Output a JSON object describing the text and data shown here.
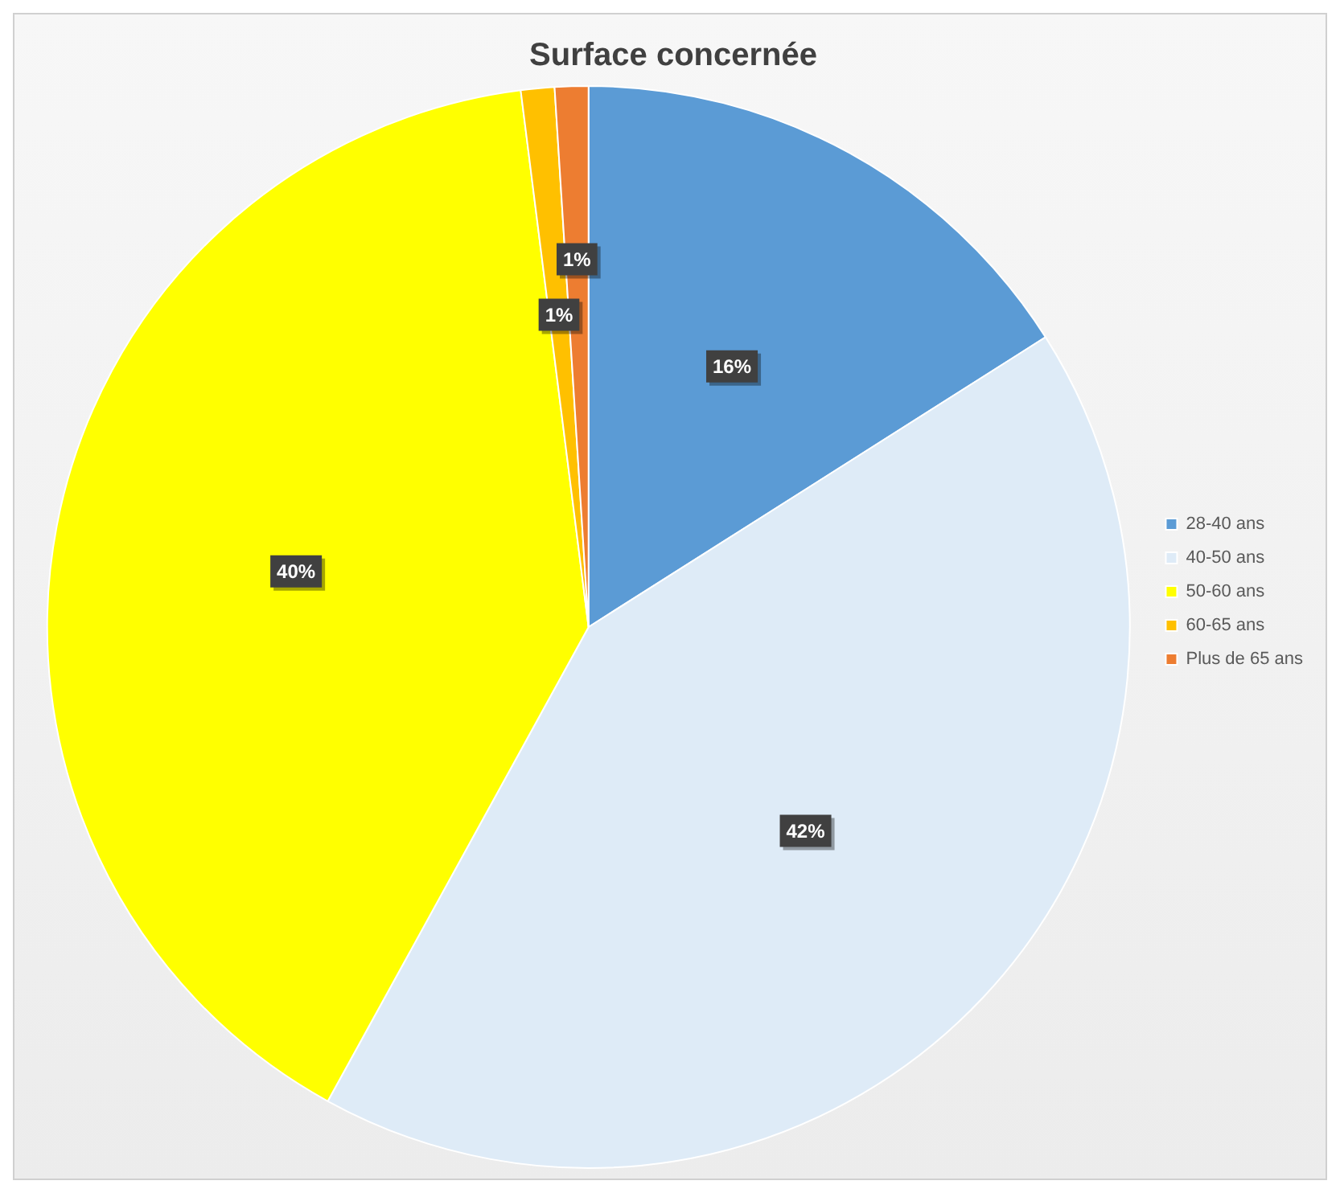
{
  "chart_data": {
    "type": "pie",
    "title": "Surface concernée",
    "categories": [
      "28-40 ans",
      "40-50 ans",
      "50-60 ans",
      "60-65 ans",
      "Plus de 65 ans"
    ],
    "values": [
      16,
      42,
      40,
      1,
      1
    ],
    "colors": [
      "#5b9bd5",
      "#deebf7",
      "#ffff00",
      "#ffc000",
      "#ed7d31"
    ],
    "value_labels": [
      "16%",
      "42%",
      "40%",
      "1%",
      "1%"
    ],
    "legend": "right"
  }
}
